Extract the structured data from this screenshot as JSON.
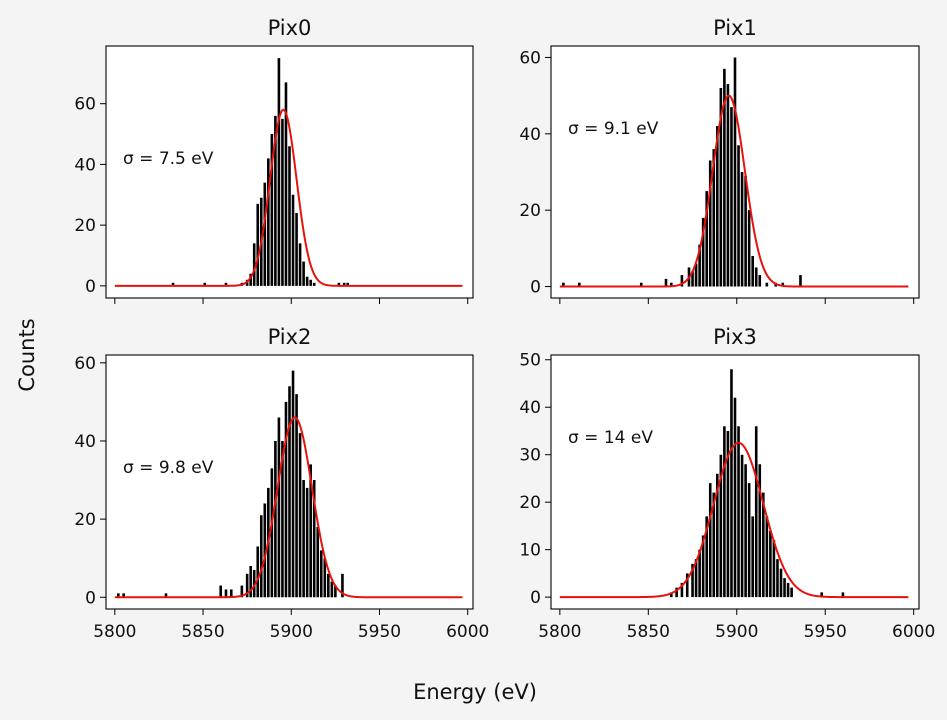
{
  "figure": {
    "xlabel": "Energy (eV)",
    "ylabel": "Counts",
    "colors": {
      "data": "#000000",
      "fit": "#e8120c",
      "background": "#f4f4f4",
      "axes": "#ffffff"
    }
  },
  "chart_data": [
    {
      "type": "bar",
      "title": "Pix0",
      "annotation": "σ = 7.5 eV",
      "xlim": [
        5795,
        6003
      ],
      "ylim": [
        -4,
        79
      ],
      "xticks": [
        5800,
        5850,
        5900,
        5950,
        6000
      ],
      "xticklabels": [],
      "yticks": [
        0,
        20,
        40,
        60
      ],
      "fit": {
        "mu": 5895.5,
        "sigma": 7.5,
        "amplitude": 58
      },
      "histogram": {
        "x": [
          5833,
          5851,
          5863,
          5872,
          5875,
          5877,
          5879,
          5881,
          5883,
          5885,
          5887,
          5889,
          5891,
          5893,
          5895,
          5897,
          5899,
          5901,
          5903,
          5905,
          5907,
          5909,
          5911,
          5913,
          5927,
          5930,
          5932
        ],
        "y": [
          1,
          1,
          1,
          1,
          2,
          4,
          14,
          27,
          29,
          34,
          42,
          50,
          56,
          75,
          55,
          67,
          46,
          30,
          24,
          14,
          8,
          3,
          2,
          1,
          1,
          1,
          1
        ]
      }
    },
    {
      "type": "bar",
      "title": "Pix1",
      "annotation": "σ = 9.1 eV",
      "xlim": [
        5795,
        6003
      ],
      "ylim": [
        -3,
        63
      ],
      "xticks": [
        5800,
        5850,
        5900,
        5950,
        6000
      ],
      "xticklabels": [],
      "yticks": [
        0,
        20,
        40,
        60
      ],
      "fit": {
        "mu": 5895.5,
        "sigma": 9.1,
        "amplitude": 50
      },
      "histogram": {
        "x": [
          5802,
          5811,
          5846,
          5860,
          5863,
          5869,
          5873,
          5875,
          5877,
          5879,
          5881,
          5883,
          5885,
          5887,
          5889,
          5891,
          5893,
          5895,
          5897,
          5899,
          5901,
          5903,
          5905,
          5907,
          5909,
          5911,
          5913,
          5917,
          5922,
          5926,
          5936
        ],
        "y": [
          1,
          1,
          1,
          2,
          1,
          3,
          5,
          4,
          6,
          11,
          18,
          25,
          33,
          36,
          42,
          52,
          57,
          53,
          47,
          60,
          37,
          30,
          29,
          20,
          8,
          5,
          3,
          1,
          1,
          1,
          3
        ]
      }
    },
    {
      "type": "bar",
      "title": "Pix2",
      "annotation": "σ = 9.8 eV",
      "xlim": [
        5795,
        6003
      ],
      "ylim": [
        -3,
        62
      ],
      "xticks": [
        5800,
        5850,
        5900,
        5950,
        6000
      ],
      "xticklabels": [
        "5800",
        "5850",
        "5900",
        "5950",
        "6000"
      ],
      "yticks": [
        0,
        20,
        40,
        60
      ],
      "fit": {
        "mu": 5902,
        "sigma": 9.8,
        "amplitude": 46
      },
      "histogram": {
        "x": [
          5802,
          5805,
          5829,
          5860,
          5863,
          5866,
          5872,
          5875,
          5877,
          5879,
          5881,
          5883,
          5885,
          5887,
          5889,
          5891,
          5893,
          5895,
          5897,
          5899,
          5901,
          5903,
          5905,
          5907,
          5909,
          5911,
          5913,
          5915,
          5917,
          5919,
          5921,
          5923,
          5925,
          5929
        ],
        "y": [
          1,
          1,
          1,
          3,
          2,
          2,
          3,
          6,
          8,
          7,
          13,
          21,
          24,
          28,
          33,
          40,
          46,
          40,
          50,
          54,
          58,
          52,
          42,
          30,
          28,
          34,
          30,
          18,
          12,
          10,
          6,
          4,
          3,
          6
        ]
      }
    },
    {
      "type": "bar",
      "title": "Pix3",
      "annotation": "σ = 14 eV",
      "xlim": [
        5795,
        6003
      ],
      "ylim": [
        -2.5,
        51
      ],
      "xticks": [
        5800,
        5850,
        5900,
        5950,
        6000
      ],
      "xticklabels": [
        "5800",
        "5850",
        "5900",
        "5950",
        "6000"
      ],
      "yticks": [
        0,
        10,
        20,
        30,
        40,
        50
      ],
      "fit": {
        "mu": 5901,
        "sigma": 14,
        "amplitude": 32.5
      },
      "histogram": {
        "x": [
          5863,
          5866,
          5869,
          5872,
          5875,
          5877,
          5879,
          5881,
          5883,
          5885,
          5887,
          5889,
          5891,
          5893,
          5895,
          5897,
          5899,
          5901,
          5903,
          5905,
          5907,
          5909,
          5911,
          5913,
          5915,
          5917,
          5919,
          5921,
          5923,
          5925,
          5927,
          5929,
          5931,
          5948,
          5960
        ],
        "y": [
          1,
          2,
          3,
          5,
          7,
          8,
          10,
          13,
          17,
          24,
          22,
          26,
          30,
          36,
          35,
          48,
          42,
          36,
          30,
          28,
          24,
          17,
          36,
          28,
          22,
          17,
          14,
          12,
          8,
          6,
          4,
          3,
          2,
          1,
          1
        ]
      }
    }
  ]
}
